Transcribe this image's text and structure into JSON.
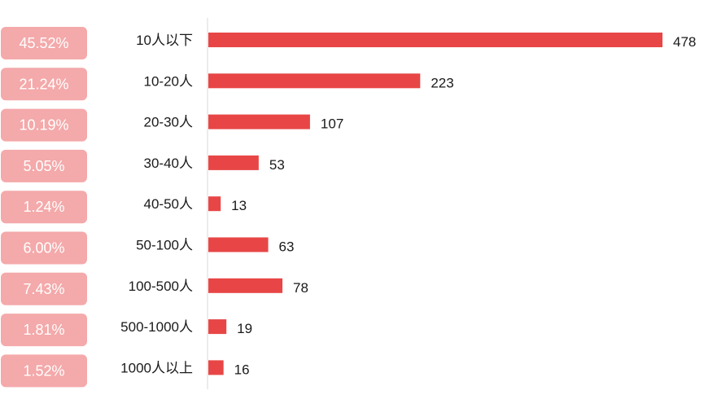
{
  "chart_data": {
    "type": "bar",
    "orientation": "horizontal",
    "title": "",
    "xlabel": "",
    "ylabel": "",
    "categories": [
      "10人以下",
      "10-20人",
      "20-30人",
      "30-40人",
      "40-50人",
      "50-100人",
      "100-500人",
      "500-1000人",
      "1000人以上"
    ],
    "values": [
      478,
      223,
      107,
      53,
      13,
      63,
      78,
      19,
      16
    ],
    "percentages": [
      "45.52%",
      "21.24%",
      "10.19%",
      "5.05%",
      "1.24%",
      "6.00%",
      "7.43%",
      "1.81%",
      "1.52%"
    ],
    "xlim": [
      0,
      478
    ],
    "grid": false,
    "legend": "none",
    "colors": {
      "bar": "#e84646",
      "badge": "#f4a9aa",
      "badge_text": "#ffffff",
      "axis": "#d9d9d9",
      "text": "#1a1a1a"
    }
  }
}
